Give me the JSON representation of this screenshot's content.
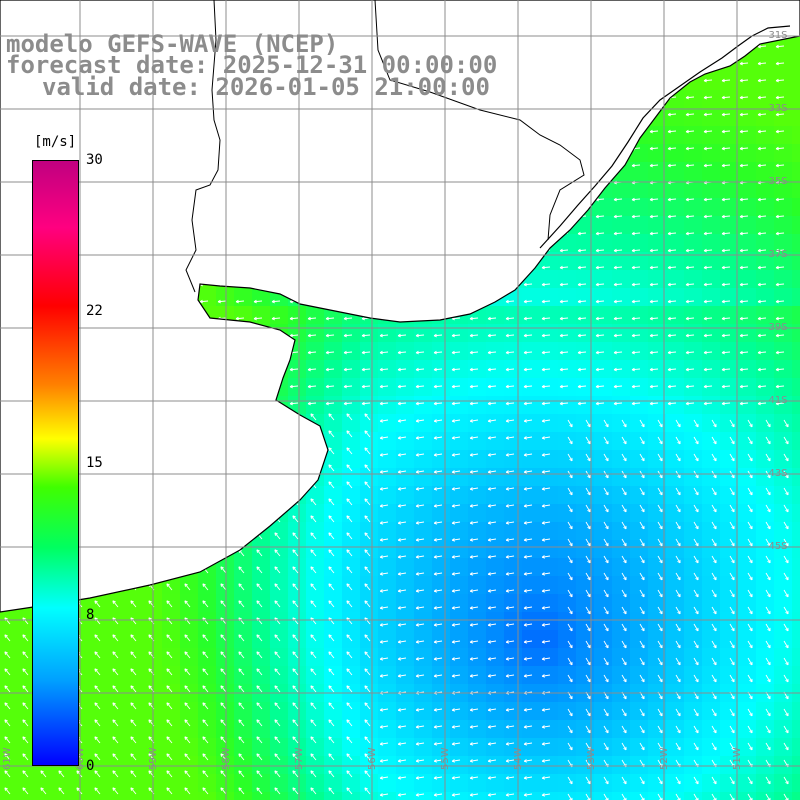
{
  "title": {
    "line1": "modelo GEFS-WAVE (NCEP)",
    "line2": "forecast date: 2025-12-31 00:00:00",
    "line3": "valid date: 2026-01-05 21:00:00"
  },
  "colorbar": {
    "unit": "[m/s]",
    "ticks": [
      {
        "label": "30",
        "value": 30
      },
      {
        "label": "22",
        "value": 22
      },
      {
        "label": "15",
        "value": 15
      },
      {
        "label": "8",
        "value": 8
      },
      {
        "label": "0",
        "value": 0
      }
    ],
    "colors": [
      "#0000ff",
      "#00a0ff",
      "#00ffff",
      "#00ff60",
      "#40ff00",
      "#ffff00",
      "#ff8000",
      "#ff0000",
      "#ff0080",
      "#c00080"
    ]
  },
  "map_style": {
    "land_color": "#ffffff",
    "coast_color": "#000000",
    "grid_color": "#8c8c8c",
    "arrow_color": "#ffffff"
  },
  "grid_labels": {
    "latitude": [
      "31S",
      "33S",
      "35S",
      "37S",
      "39S",
      "41S",
      "43S",
      "45S"
    ],
    "longitude": [
      "61W",
      "60W",
      "59W",
      "58W",
      "57W",
      "56W",
      "55W",
      "54W",
      "53W",
      "52W",
      "51W"
    ]
  }
}
